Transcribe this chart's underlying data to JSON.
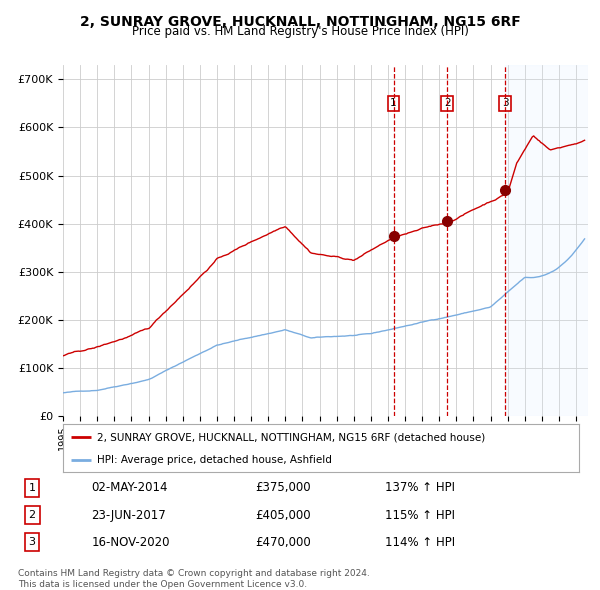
{
  "title": "2, SUNRAY GROVE, HUCKNALL, NOTTINGHAM, NG15 6RF",
  "subtitle": "Price paid vs. HM Land Registry's House Price Index (HPI)",
  "title_fontsize": 10,
  "subtitle_fontsize": 8.5,
  "ylim": [
    0,
    730000
  ],
  "yticks": [
    0,
    100000,
    200000,
    300000,
    400000,
    500000,
    600000,
    700000
  ],
  "ytick_labels": [
    "£0",
    "£100K",
    "£200K",
    "£300K",
    "£400K",
    "£500K",
    "£600K",
    "£700K"
  ],
  "line_color_red": "#cc0000",
  "line_color_blue": "#7aade0",
  "dot_color": "#880000",
  "vline_color": "#cc0000",
  "shade_color": "#ddeeff",
  "grid_color": "#cccccc",
  "sale_dates_num": [
    2014.33,
    2017.47,
    2020.87
  ],
  "sale_prices": [
    375000,
    405000,
    470000
  ],
  "sale_labels": [
    "1",
    "2",
    "3"
  ],
  "legend_label_red": "2, SUNRAY GROVE, HUCKNALL, NOTTINGHAM, NG15 6RF (detached house)",
  "legend_label_blue": "HPI: Average price, detached house, Ashfield",
  "table_data": [
    [
      "1",
      "02-MAY-2014",
      "£375,000",
      "137% ↑ HPI"
    ],
    [
      "2",
      "23-JUN-2017",
      "£405,000",
      "115% ↑ HPI"
    ],
    [
      "3",
      "16-NOV-2020",
      "£470,000",
      "114% ↑ HPI"
    ]
  ],
  "footer": "Contains HM Land Registry data © Crown copyright and database right 2024.\nThis data is licensed under the Open Government Licence v3.0.",
  "bg_color": "#ffffff"
}
